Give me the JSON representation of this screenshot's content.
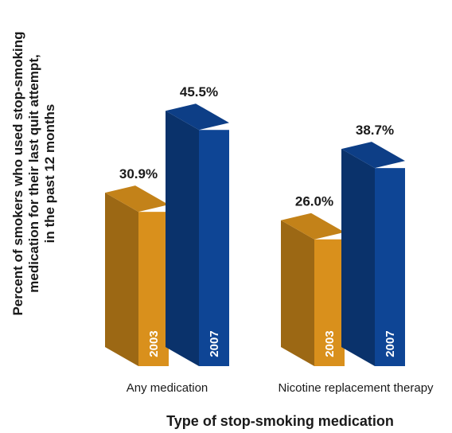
{
  "chart_data": {
    "type": "bar",
    "style": "3d",
    "title": "",
    "xlabel": "Type of stop-smoking medication",
    "ylabel_lines": [
      "Percent of smokers who used stop-smoking",
      "medication for their last quit attempt,",
      "in the past 12 months"
    ],
    "categories": [
      "Any medication",
      "Nicotine replacement therapy"
    ],
    "series": [
      {
        "name": "2003",
        "values": [
          30.9,
          26.0
        ],
        "labels": [
          "30.9%",
          "26.0%"
        ],
        "color": "#d9901c"
      },
      {
        "name": "2007",
        "values": [
          45.5,
          38.7
        ],
        "labels": [
          "45.5%",
          "38.7%"
        ],
        "color": "#0e4595"
      }
    ],
    "grid": false,
    "legend": "none"
  }
}
